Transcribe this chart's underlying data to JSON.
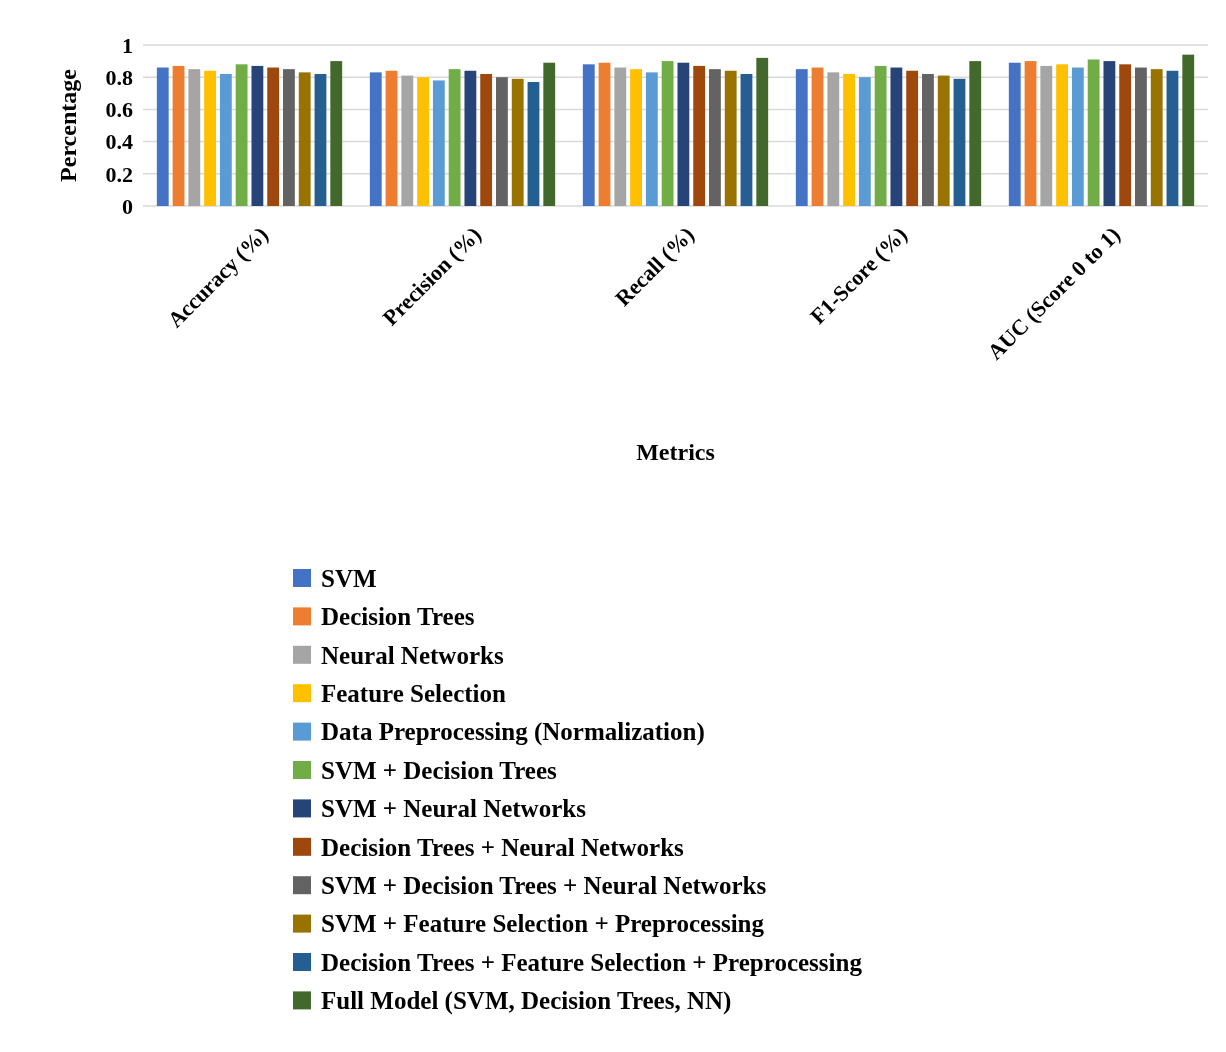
{
  "chart_data": {
    "type": "bar",
    "xlabel": "Metrics",
    "ylabel": "Percentage",
    "categories": [
      "Accuracy (%)",
      "Precision (%)",
      "Recall (%)",
      "F1-Score (%)",
      "AUC (Score 0 to 1)"
    ],
    "ylim": [
      0,
      1
    ],
    "yticks": [
      0,
      0.2,
      0.4,
      0.6,
      0.8,
      1
    ],
    "grid": "y",
    "legend": "bottom",
    "series": [
      {
        "name": "SVM",
        "color": "#4472c4",
        "values": [
          0.86,
          0.83,
          0.88,
          0.85,
          0.89
        ]
      },
      {
        "name": "Decision Trees",
        "color": "#ed7d31",
        "values": [
          0.87,
          0.84,
          0.89,
          0.86,
          0.9
        ]
      },
      {
        "name": "Neural Networks",
        "color": "#a5a5a5",
        "values": [
          0.85,
          0.81,
          0.86,
          0.83,
          0.87
        ]
      },
      {
        "name": "Feature Selection",
        "color": "#ffc000",
        "values": [
          0.84,
          0.8,
          0.85,
          0.82,
          0.88
        ]
      },
      {
        "name": "Data Preprocessing (Normalization)",
        "color": "#5b9bd5",
        "values": [
          0.82,
          0.78,
          0.83,
          0.8,
          0.86
        ]
      },
      {
        "name": "SVM + Decision Trees",
        "color": "#70ad47",
        "values": [
          0.88,
          0.85,
          0.9,
          0.87,
          0.91
        ]
      },
      {
        "name": "SVM + Neural Networks",
        "color": "#264478",
        "values": [
          0.87,
          0.84,
          0.89,
          0.86,
          0.9
        ]
      },
      {
        "name": "Decision Trees + Neural Networks",
        "color": "#9e480e",
        "values": [
          0.86,
          0.82,
          0.87,
          0.84,
          0.88
        ]
      },
      {
        "name": "SVM + Decision Trees + Neural Networks",
        "color": "#636363",
        "values": [
          0.85,
          0.8,
          0.85,
          0.82,
          0.86
        ]
      },
      {
        "name": "SVM + Feature Selection + Preprocessing",
        "color": "#997300",
        "values": [
          0.83,
          0.79,
          0.84,
          0.81,
          0.85
        ]
      },
      {
        "name": "Decision Trees + Feature Selection + Preprocessing",
        "color": "#255e91",
        "values": [
          0.82,
          0.77,
          0.82,
          0.79,
          0.84
        ]
      },
      {
        "name": "Full Model (SVM, Decision Trees, NN)",
        "color": "#43682b",
        "values": [
          0.9,
          0.89,
          0.92,
          0.9,
          0.94
        ]
      }
    ]
  }
}
